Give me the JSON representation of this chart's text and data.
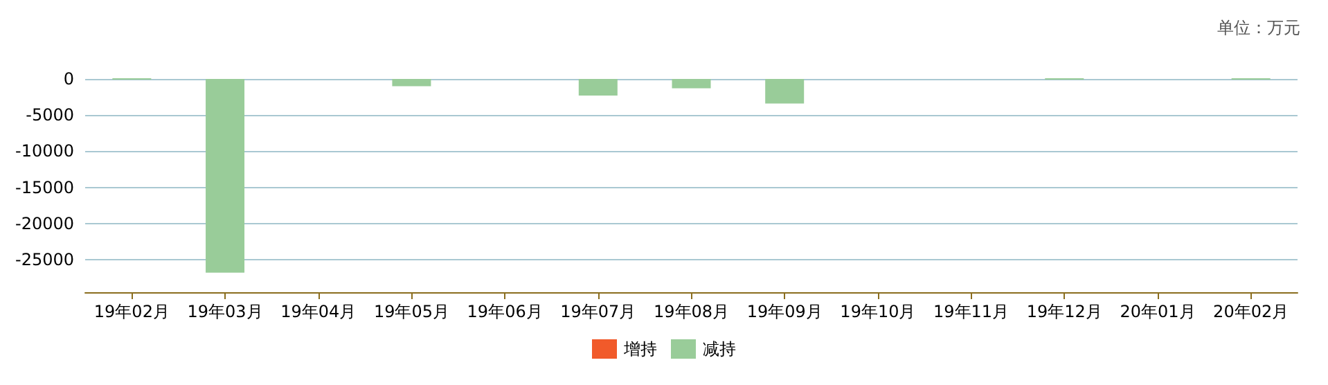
{
  "chart_data": {
    "type": "bar",
    "annotations": [
      "单位：万元"
    ],
    "categories": [
      "19年02月",
      "19年03月",
      "19年04月",
      "19年05月",
      "19年06月",
      "19年07月",
      "19年08月",
      "19年09月",
      "19年10月",
      "19年11月",
      "19年12月",
      "20年01月",
      "20年02月"
    ],
    "series": [
      {
        "name": "增持",
        "color": "#f15a2a",
        "values": [
          null,
          null,
          null,
          null,
          null,
          null,
          null,
          null,
          null,
          null,
          null,
          null,
          null
        ]
      },
      {
        "name": "减持",
        "color": "#99cc99",
        "values": [
          0,
          -26800,
          null,
          -1000,
          null,
          -2300,
          -1300,
          -3400,
          null,
          null,
          0,
          null,
          0
        ]
      }
    ],
    "stacked": true,
    "ylim": [
      -29500,
      0
    ],
    "yticks": [
      0,
      -5000,
      -10000,
      -15000,
      -20000,
      -25000
    ],
    "grid": "y",
    "legend": "bottom"
  }
}
